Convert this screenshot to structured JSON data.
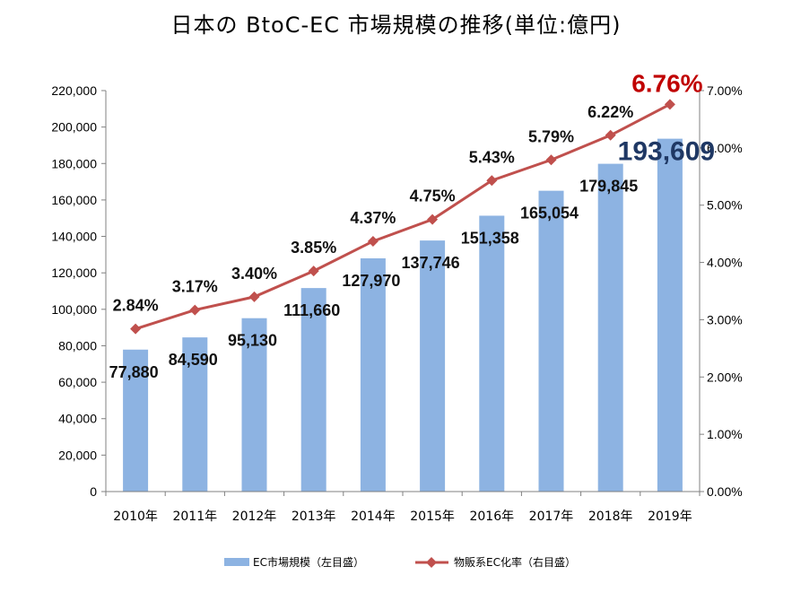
{
  "title": "日本の BtoC-EC 市場規模の推移(単位:億円)",
  "chart_data": {
    "type": "bar+line",
    "categories": [
      "2010年",
      "2011年",
      "2012年",
      "2013年",
      "2014年",
      "2015年",
      "2016年",
      "2017年",
      "2018年",
      "2019年"
    ],
    "series": [
      {
        "name": "EC市場規模（左目盛）",
        "type": "bar",
        "axis": "left",
        "values": [
          77880,
          84590,
          95130,
          111660,
          127970,
          137746,
          151358,
          165054,
          179845,
          193609
        ],
        "labels": [
          "77,880",
          "84,590",
          "95,130",
          "111,660",
          "127,970",
          "137,746",
          "151,358",
          "165,054",
          "179,845",
          "193,609"
        ],
        "color": "#8db3e2"
      },
      {
        "name": "物販系EC化率（右目盛）",
        "type": "line",
        "axis": "right",
        "values": [
          2.84,
          3.17,
          3.4,
          3.85,
          4.37,
          4.75,
          5.43,
          5.79,
          6.22,
          6.76
        ],
        "labels": [
          "2.84%",
          "3.17%",
          "3.40%",
          "3.85%",
          "4.37%",
          "4.75%",
          "5.43%",
          "5.79%",
          "6.22%",
          "6.76%"
        ],
        "color": "#c0504d"
      }
    ],
    "y_left": {
      "lim": [
        0,
        220000
      ],
      "ticks": [
        "0",
        "20,000",
        "40,000",
        "60,000",
        "80,000",
        "100,000",
        "120,000",
        "140,000",
        "160,000",
        "180,000",
        "200,000",
        "220,000"
      ]
    },
    "y_right": {
      "lim": [
        0,
        7
      ],
      "ticks": [
        "0.00%",
        "1.00%",
        "2.00%",
        "3.00%",
        "4.00%",
        "5.00%",
        "6.00%",
        "7.00%"
      ]
    },
    "highlights": {
      "last_bar_label_color": "#1f3864",
      "last_rate_label_color": "#c00000"
    },
    "grid": false,
    "legend": "bottom-center"
  }
}
